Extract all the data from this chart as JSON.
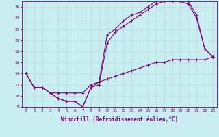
{
  "xlabel": "Windchill (Refroidissement éolien,°C)",
  "bg_color": "#c8eef0",
  "line_color": "#800080",
  "grid_color": "#b0d8dc",
  "xlim": [
    -0.5,
    23.5
  ],
  "ylim": [
    8,
    27
  ],
  "xticks": [
    0,
    1,
    2,
    3,
    4,
    5,
    6,
    7,
    8,
    9,
    10,
    11,
    12,
    13,
    14,
    15,
    16,
    17,
    18,
    19,
    20,
    21,
    22,
    23
  ],
  "yticks": [
    8,
    10,
    12,
    14,
    16,
    18,
    20,
    22,
    24,
    26
  ],
  "line1_x": [
    0,
    1,
    2,
    3,
    4,
    5,
    6,
    7,
    8,
    9,
    10,
    11,
    12,
    13,
    14,
    15,
    16,
    17,
    18,
    19,
    20,
    21,
    22,
    23
  ],
  "line1_y": [
    14,
    11.5,
    11.5,
    10.5,
    9.5,
    9.0,
    9.0,
    8.0,
    11.5,
    12.0,
    19.5,
    21.5,
    22.5,
    23.5,
    24.5,
    25.5,
    26.5,
    27.0,
    27.0,
    27.0,
    26.5,
    24.0,
    18.5,
    17.0
  ],
  "line2_x": [
    0,
    1,
    2,
    3,
    4,
    5,
    6,
    7,
    8,
    9,
    10,
    11,
    12,
    13,
    14,
    15,
    16,
    17,
    18,
    19,
    20,
    21,
    22,
    23
  ],
  "line2_y": [
    14,
    11.5,
    11.5,
    10.5,
    9.5,
    9.0,
    9.0,
    8.0,
    11.5,
    12.5,
    21.0,
    22.0,
    23.5,
    24.5,
    25.0,
    26.0,
    27.0,
    27.5,
    27.5,
    27.5,
    27.0,
    24.5,
    18.5,
    17.0
  ],
  "line3_x": [
    0,
    1,
    2,
    3,
    4,
    5,
    6,
    7,
    8,
    9,
    10,
    11,
    12,
    13,
    14,
    15,
    16,
    17,
    18,
    19,
    20,
    21,
    22,
    23
  ],
  "line3_y": [
    14,
    11.5,
    11.5,
    10.5,
    10.5,
    10.5,
    10.5,
    10.5,
    12.0,
    12.5,
    13.0,
    13.5,
    14.0,
    14.5,
    15.0,
    15.5,
    16.0,
    16.0,
    16.5,
    16.5,
    16.5,
    16.5,
    16.5,
    17.0
  ],
  "marker": "+",
  "markersize": 3.5,
  "linewidth": 0.8,
  "tick_fontsize": 4.5,
  "xlabel_fontsize": 5.5
}
